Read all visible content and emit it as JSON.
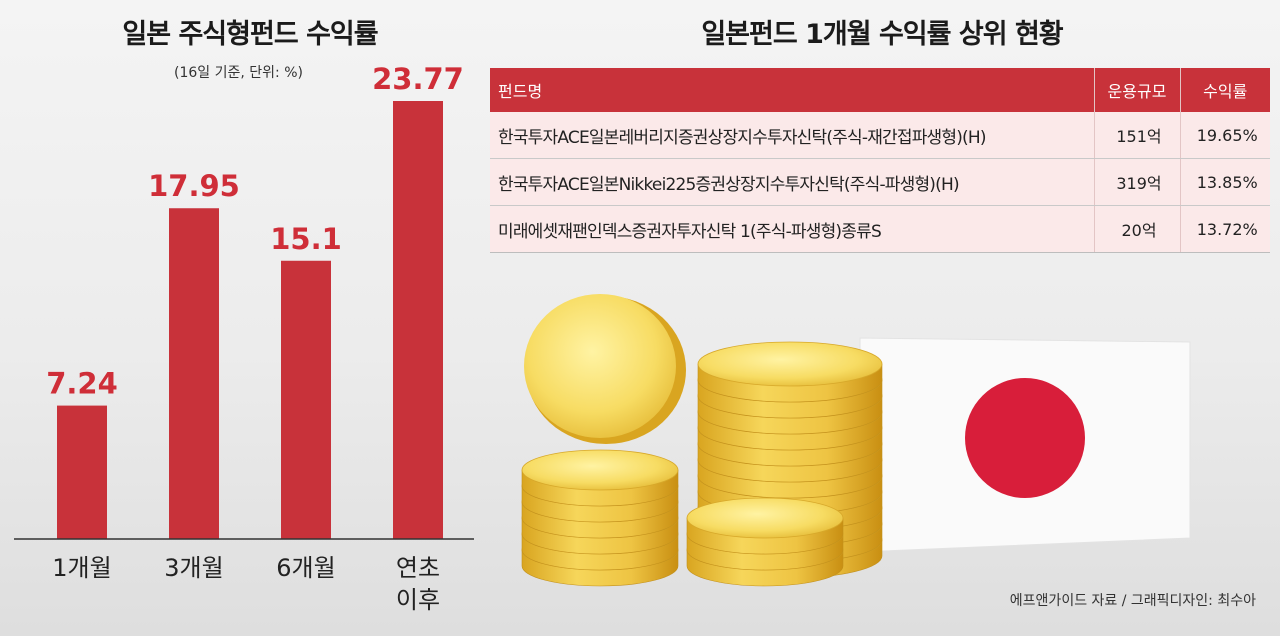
{
  "left": {
    "title": "일본 주식형펀드 수익률",
    "subtitle": "(16일 기준, 단위: %)"
  },
  "chart_data": {
    "type": "bar",
    "title": "일본 주식형펀드 수익률",
    "subtitle": "(16일 기준, 단위: %)",
    "categories": [
      [
        "1개월"
      ],
      [
        "3개월"
      ],
      [
        "6개월"
      ],
      [
        "연초",
        "이후"
      ]
    ],
    "values": [
      7.24,
      17.95,
      15.1,
      23.77
    ],
    "value_labels": [
      "7.24",
      "17.95",
      "15.1",
      "23.77"
    ],
    "bar_color": "#c8323a",
    "label_color": "#cf2e38",
    "ylim": [
      0,
      23.77
    ],
    "grid": false
  },
  "table": {
    "title": "일본펀드 1개월 수익률 상위 현황",
    "headers": [
      "펀드명",
      "운용규모",
      "수익률"
    ],
    "rows": [
      [
        "한국투자ACE일본레버리지증권상장지수투자신탁(주식-재간접파생형)(H)",
        "151억",
        "19.65%"
      ],
      [
        "한국투자ACE일본Nikkei225증권상장지수투자신탁(주식-파생형)(H)",
        "319억",
        "13.85%"
      ],
      [
        "미래에셋재팬인덱스증권자투자신탁 1(주식-파생형)종류S",
        "20억",
        "13.72%"
      ]
    ],
    "header_color": "#c8323a",
    "row_color": "#fbe9e9"
  },
  "illustration": {
    "coin_color": "#f2c73a",
    "flag_circle_color": "#d81e3a"
  },
  "source": "에프앤가이드 자료 / 그래픽디자인: 최수아"
}
